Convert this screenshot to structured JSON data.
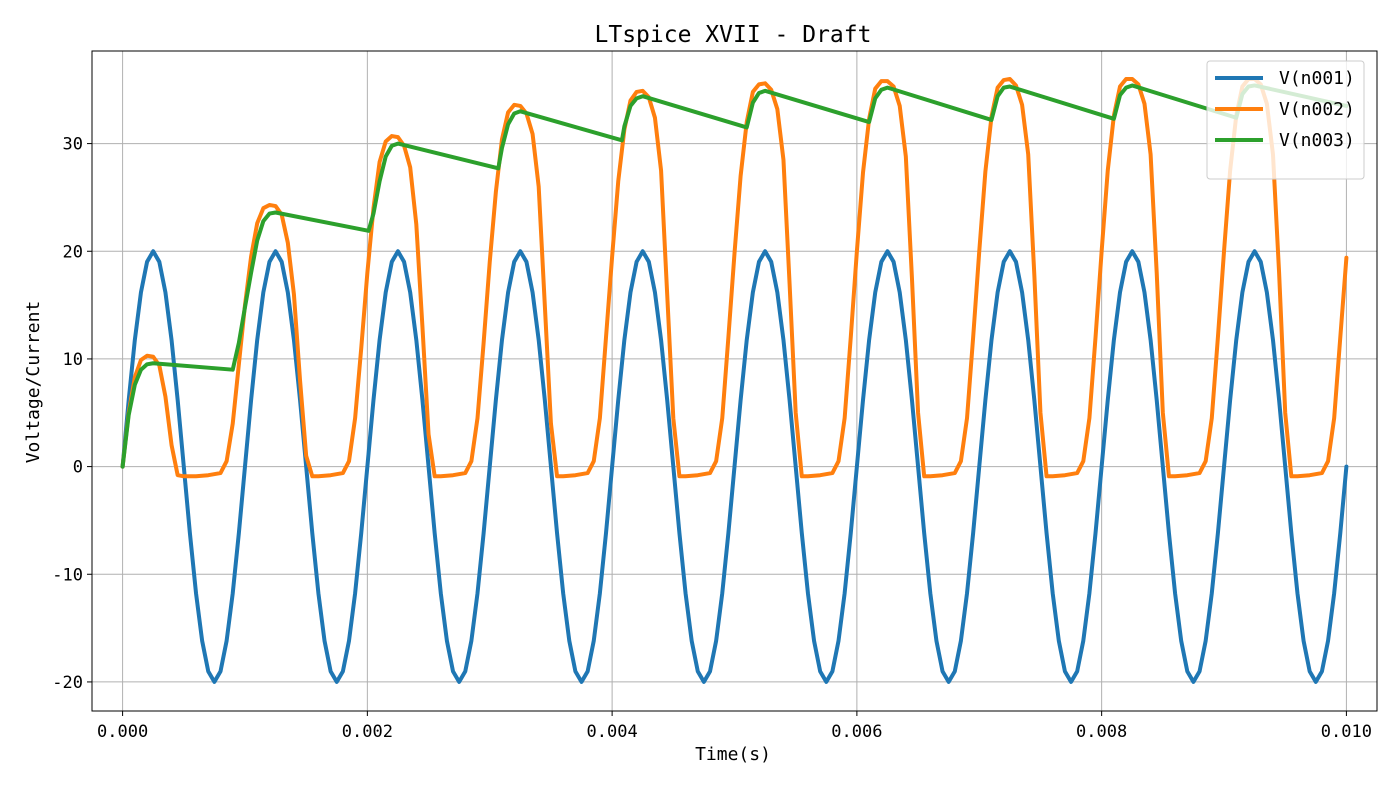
{
  "chart_data": {
    "type": "line",
    "title": "LTspice XVII - Draft",
    "xlabel": "Time(s)",
    "ylabel": "Voltage/Current",
    "xlim": [
      -0.00025,
      0.01025
    ],
    "ylim": [
      -22.7,
      38.6
    ],
    "xticks": [
      0.0,
      0.002,
      0.004,
      0.006,
      0.008,
      0.01
    ],
    "xtick_labels": [
      "0.000",
      "0.002",
      "0.004",
      "0.006",
      "0.008",
      "0.010"
    ],
    "yticks": [
      -20,
      -10,
      0,
      10,
      20,
      30
    ],
    "ytick_labels": [
      "-20",
      "-10",
      "0",
      "10",
      "20",
      "30"
    ],
    "grid": true,
    "legend_position": "top-right",
    "series": [
      {
        "name": "V(n001)",
        "color": "#1f77b4",
        "x": [
          0.0,
          5e-05,
          0.0001,
          0.00015,
          0.0002,
          0.00025,
          0.0003,
          0.00035,
          0.0004,
          0.00045,
          0.0005,
          0.00055,
          0.0006,
          0.00065,
          0.0007,
          0.00075,
          0.0008,
          0.00085,
          0.0009,
          0.00095,
          0.001,
          0.00105,
          0.0011,
          0.00115,
          0.0012,
          0.00125,
          0.0013,
          0.00135,
          0.0014,
          0.00145,
          0.0015,
          0.00155,
          0.0016,
          0.00165,
          0.0017,
          0.00175,
          0.0018,
          0.00185,
          0.0019,
          0.00195,
          0.002,
          0.00205,
          0.0021,
          0.00215,
          0.0022,
          0.00225,
          0.0023,
          0.00235,
          0.0024,
          0.00245,
          0.0025,
          0.00255,
          0.0026,
          0.00265,
          0.0027,
          0.00275,
          0.0028,
          0.00285,
          0.0029,
          0.00295,
          0.003,
          0.00305,
          0.0031,
          0.00315,
          0.0032,
          0.00325,
          0.0033,
          0.00335,
          0.0034,
          0.00345,
          0.0035,
          0.00355,
          0.0036,
          0.00365,
          0.0037,
          0.00375,
          0.0038,
          0.00385,
          0.0039,
          0.00395,
          0.004,
          0.00405,
          0.0041,
          0.00415,
          0.0042,
          0.00425,
          0.0043,
          0.00435,
          0.0044,
          0.00445,
          0.0045,
          0.00455,
          0.0046,
          0.00465,
          0.0047,
          0.00475,
          0.0048,
          0.00485,
          0.0049,
          0.00495,
          0.005,
          0.00505,
          0.0051,
          0.00515,
          0.0052,
          0.00525,
          0.0053,
          0.00535,
          0.0054,
          0.00545,
          0.0055,
          0.00555,
          0.0056,
          0.00565,
          0.0057,
          0.00575,
          0.0058,
          0.00585,
          0.0059,
          0.00595,
          0.006,
          0.00605,
          0.0061,
          0.00615,
          0.0062,
          0.00625,
          0.0063,
          0.00635,
          0.0064,
          0.00645,
          0.0065,
          0.00655,
          0.0066,
          0.00665,
          0.0067,
          0.00675,
          0.0068,
          0.00685,
          0.0069,
          0.00695,
          0.007,
          0.00705,
          0.0071,
          0.00715,
          0.0072,
          0.00725,
          0.0073,
          0.00735,
          0.0074,
          0.00745,
          0.0075,
          0.00755,
          0.0076,
          0.00765,
          0.0077,
          0.00775,
          0.0078,
          0.00785,
          0.0079,
          0.00795,
          0.008,
          0.00805,
          0.0081,
          0.00815,
          0.0082,
          0.00825,
          0.0083,
          0.00835,
          0.0084,
          0.00845,
          0.0085,
          0.00855,
          0.0086,
          0.00865,
          0.0087,
          0.00875,
          0.0088,
          0.00885,
          0.0089,
          0.00895,
          0.009,
          0.00905,
          0.0091,
          0.00915,
          0.0092,
          0.00925,
          0.0093,
          0.00935,
          0.0094,
          0.00945,
          0.0095,
          0.00955,
          0.0096,
          0.00965,
          0.0097,
          0.00975,
          0.0098,
          0.00985,
          0.0099,
          0.00995,
          0.01
        ],
        "y": [
          0.0,
          6.18,
          11.76,
          16.18,
          19.02,
          20.0,
          19.02,
          16.18,
          11.76,
          6.18,
          0.0,
          -6.18,
          -11.76,
          -16.18,
          -19.02,
          -20.0,
          -19.02,
          -16.18,
          -11.76,
          -6.18,
          0.0,
          6.18,
          11.76,
          16.18,
          19.02,
          20.0,
          19.02,
          16.18,
          11.76,
          6.18,
          0.0,
          -6.18,
          -11.76,
          -16.18,
          -19.02,
          -20.0,
          -19.02,
          -16.18,
          -11.76,
          -6.18,
          0.0,
          6.18,
          11.76,
          16.18,
          19.02,
          20.0,
          19.02,
          16.18,
          11.76,
          6.18,
          0.0,
          -6.18,
          -11.76,
          -16.18,
          -19.02,
          -20.0,
          -19.02,
          -16.18,
          -11.76,
          -6.18,
          0.0,
          6.18,
          11.76,
          16.18,
          19.02,
          20.0,
          19.02,
          16.18,
          11.76,
          6.18,
          0.0,
          -6.18,
          -11.76,
          -16.18,
          -19.02,
          -20.0,
          -19.02,
          -16.18,
          -11.76,
          -6.18,
          0.0,
          6.18,
          11.76,
          16.18,
          19.02,
          20.0,
          19.02,
          16.18,
          11.76,
          6.18,
          0.0,
          -6.18,
          -11.76,
          -16.18,
          -19.02,
          -20.0,
          -19.02,
          -16.18,
          -11.76,
          -6.18,
          0.0,
          6.18,
          11.76,
          16.18,
          19.02,
          20.0,
          19.02,
          16.18,
          11.76,
          6.18,
          0.0,
          -6.18,
          -11.76,
          -16.18,
          -19.02,
          -20.0,
          -19.02,
          -16.18,
          -11.76,
          -6.18,
          0.0,
          6.18,
          11.76,
          16.18,
          19.02,
          20.0,
          19.02,
          16.18,
          11.76,
          6.18,
          0.0,
          -6.18,
          -11.76,
          -16.18,
          -19.02,
          -20.0,
          -19.02,
          -16.18,
          -11.76,
          -6.18,
          0.0,
          6.18,
          11.76,
          16.18,
          19.02,
          20.0,
          19.02,
          16.18,
          11.76,
          6.18,
          0.0,
          -6.18,
          -11.76,
          -16.18,
          -19.02,
          -20.0,
          -19.02,
          -16.18,
          -11.76,
          -6.18,
          0.0,
          6.18,
          11.76,
          16.18,
          19.02,
          20.0,
          19.02,
          16.18,
          11.76,
          6.18,
          0.0,
          -6.18,
          -11.76,
          -16.18,
          -19.02,
          -20.0,
          -19.02,
          -16.18,
          -11.76,
          -6.18,
          0.0,
          6.18,
          11.76,
          16.18,
          19.02,
          20.0,
          19.02,
          16.18,
          11.76,
          6.18,
          0.0,
          -6.18,
          -11.76,
          -16.18,
          -19.02,
          -20.0,
          -19.02,
          -16.18,
          -11.76,
          -6.18,
          0.0
        ]
      },
      {
        "name": "V(n002)",
        "color": "#ff7f0e",
        "x": [
          0.0,
          5e-05,
          0.0001,
          0.00015,
          0.0002,
          0.00025,
          0.0003,
          0.00035,
          0.0004,
          0.00045,
          0.0005,
          0.0006,
          0.0007,
          0.0008,
          0.00085,
          0.0009,
          0.00095,
          0.001,
          0.00105,
          0.0011,
          0.00115,
          0.0012,
          0.00125,
          0.0013,
          0.00135,
          0.0014,
          0.00145,
          0.0015,
          0.00155,
          0.0016,
          0.0017,
          0.0018,
          0.00185,
          0.0019,
          0.00195,
          0.002,
          0.00205,
          0.0021,
          0.00215,
          0.0022,
          0.00225,
          0.0023,
          0.00235,
          0.0024,
          0.00245,
          0.0025,
          0.00255,
          0.0026,
          0.0027,
          0.0028,
          0.00285,
          0.0029,
          0.00295,
          0.003,
          0.00305,
          0.0031,
          0.00315,
          0.0032,
          0.00325,
          0.0033,
          0.00335,
          0.0034,
          0.00345,
          0.0035,
          0.00355,
          0.0036,
          0.0037,
          0.0038,
          0.00385,
          0.0039,
          0.00395,
          0.004,
          0.00405,
          0.0041,
          0.00415,
          0.0042,
          0.00425,
          0.0043,
          0.00435,
          0.0044,
          0.00445,
          0.0045,
          0.00455,
          0.0046,
          0.0047,
          0.0048,
          0.00485,
          0.0049,
          0.00495,
          0.005,
          0.00505,
          0.0051,
          0.00515,
          0.0052,
          0.00525,
          0.0053,
          0.00535,
          0.0054,
          0.00545,
          0.0055,
          0.00555,
          0.0056,
          0.0057,
          0.0058,
          0.00585,
          0.0059,
          0.00595,
          0.006,
          0.00605,
          0.0061,
          0.00615,
          0.0062,
          0.00625,
          0.0063,
          0.00635,
          0.0064,
          0.00645,
          0.0065,
          0.00655,
          0.0066,
          0.0067,
          0.0068,
          0.00685,
          0.0069,
          0.00695,
          0.007,
          0.00705,
          0.0071,
          0.00715,
          0.0072,
          0.00725,
          0.0073,
          0.00735,
          0.0074,
          0.00745,
          0.0075,
          0.00755,
          0.0076,
          0.0077,
          0.0078,
          0.00785,
          0.0079,
          0.00795,
          0.008,
          0.00805,
          0.0081,
          0.00815,
          0.0082,
          0.00825,
          0.0083,
          0.00835,
          0.0084,
          0.00845,
          0.0085,
          0.00855,
          0.0086,
          0.0087,
          0.0088,
          0.00885,
          0.0089,
          0.00895,
          0.009,
          0.00905,
          0.0091,
          0.00915,
          0.0092,
          0.00925,
          0.0093,
          0.00935,
          0.0094,
          0.00945,
          0.0095,
          0.00955,
          0.0096,
          0.0097,
          0.0098,
          0.00985,
          0.0099,
          0.00995,
          0.01
        ],
        "y": [
          0.0,
          5.0,
          8.3,
          9.9,
          10.3,
          10.2,
          9.4,
          6.5,
          2.0,
          -0.8,
          -0.9,
          -0.9,
          -0.8,
          -0.6,
          0.5,
          4.0,
          9.5,
          15.0,
          19.5,
          22.6,
          24.0,
          24.3,
          24.2,
          23.4,
          20.8,
          16.0,
          8.0,
          1.0,
          -0.9,
          -0.9,
          -0.8,
          -0.6,
          0.5,
          4.5,
          11.0,
          18.0,
          24.0,
          28.3,
          30.2,
          30.7,
          30.6,
          29.8,
          27.8,
          22.5,
          13.0,
          3.0,
          -0.9,
          -0.9,
          -0.8,
          -0.6,
          0.5,
          4.5,
          11.5,
          19.0,
          25.5,
          30.4,
          32.9,
          33.6,
          33.5,
          32.8,
          30.9,
          26.0,
          15.0,
          4.0,
          -0.9,
          -0.9,
          -0.8,
          -0.6,
          0.5,
          4.5,
          12.0,
          19.5,
          26.5,
          31.3,
          34.0,
          34.8,
          34.9,
          34.3,
          32.4,
          27.5,
          16.0,
          4.5,
          -0.9,
          -0.9,
          -0.8,
          -0.6,
          0.5,
          4.5,
          12.0,
          19.8,
          27.0,
          32.0,
          34.8,
          35.5,
          35.6,
          35.0,
          33.2,
          28.5,
          17.0,
          5.0,
          -0.9,
          -0.9,
          -0.8,
          -0.6,
          0.5,
          4.5,
          12.0,
          20.0,
          27.3,
          32.3,
          35.1,
          35.8,
          35.8,
          35.3,
          33.5,
          28.8,
          17.5,
          5.0,
          -0.9,
          -0.9,
          -0.8,
          -0.6,
          0.5,
          4.5,
          12.0,
          20.0,
          27.4,
          32.5,
          35.2,
          35.9,
          36.0,
          35.4,
          33.6,
          29.0,
          17.8,
          5.0,
          -0.9,
          -0.9,
          -0.8,
          -0.6,
          0.5,
          4.5,
          12.0,
          20.0,
          27.5,
          32.6,
          35.3,
          36.0,
          36.0,
          35.5,
          33.7,
          29.0,
          18.0,
          5.0,
          -0.9,
          -0.9,
          -0.8,
          -0.6,
          0.5,
          4.5,
          12.0,
          20.0,
          27.5,
          32.6,
          35.3,
          36.0,
          36.0,
          35.5,
          33.7,
          29.0,
          18.0,
          5.0,
          -0.9,
          -0.9,
          -0.8,
          -0.6,
          0.5,
          4.5,
          12.0,
          19.4
        ]
      },
      {
        "name": "V(n003)",
        "color": "#2ca02c",
        "x": [
          0.0,
          5e-05,
          0.0001,
          0.00015,
          0.0002,
          0.00025,
          0.0009,
          0.00095,
          0.001,
          0.00105,
          0.0011,
          0.00115,
          0.0012,
          0.00125,
          0.00201,
          0.00205,
          0.0021,
          0.00215,
          0.0022,
          0.00225,
          0.00307,
          0.0031,
          0.00315,
          0.0032,
          0.00325,
          0.00408,
          0.0041,
          0.00415,
          0.0042,
          0.00425,
          0.0051,
          0.00515,
          0.0052,
          0.00525,
          0.0061,
          0.00615,
          0.0062,
          0.00625,
          0.0071,
          0.00715,
          0.0072,
          0.00725,
          0.0081,
          0.00815,
          0.0082,
          0.00825,
          0.0091,
          0.00915,
          0.0092,
          0.00925,
          0.01
        ],
        "y": [
          0.0,
          4.8,
          7.6,
          9.0,
          9.5,
          9.6,
          9.0,
          11.5,
          14.8,
          18.0,
          21.0,
          22.8,
          23.5,
          23.6,
          21.9,
          23.5,
          26.5,
          28.8,
          29.8,
          30.0,
          27.7,
          29.6,
          31.8,
          32.8,
          33.0,
          30.3,
          31.6,
          33.5,
          34.2,
          34.4,
          31.5,
          33.8,
          34.7,
          34.9,
          32.0,
          34.2,
          35.0,
          35.2,
          32.2,
          34.4,
          35.2,
          35.3,
          32.3,
          34.5,
          35.2,
          35.4,
          32.4,
          34.6,
          35.3,
          35.4,
          33.5
        ]
      }
    ]
  }
}
